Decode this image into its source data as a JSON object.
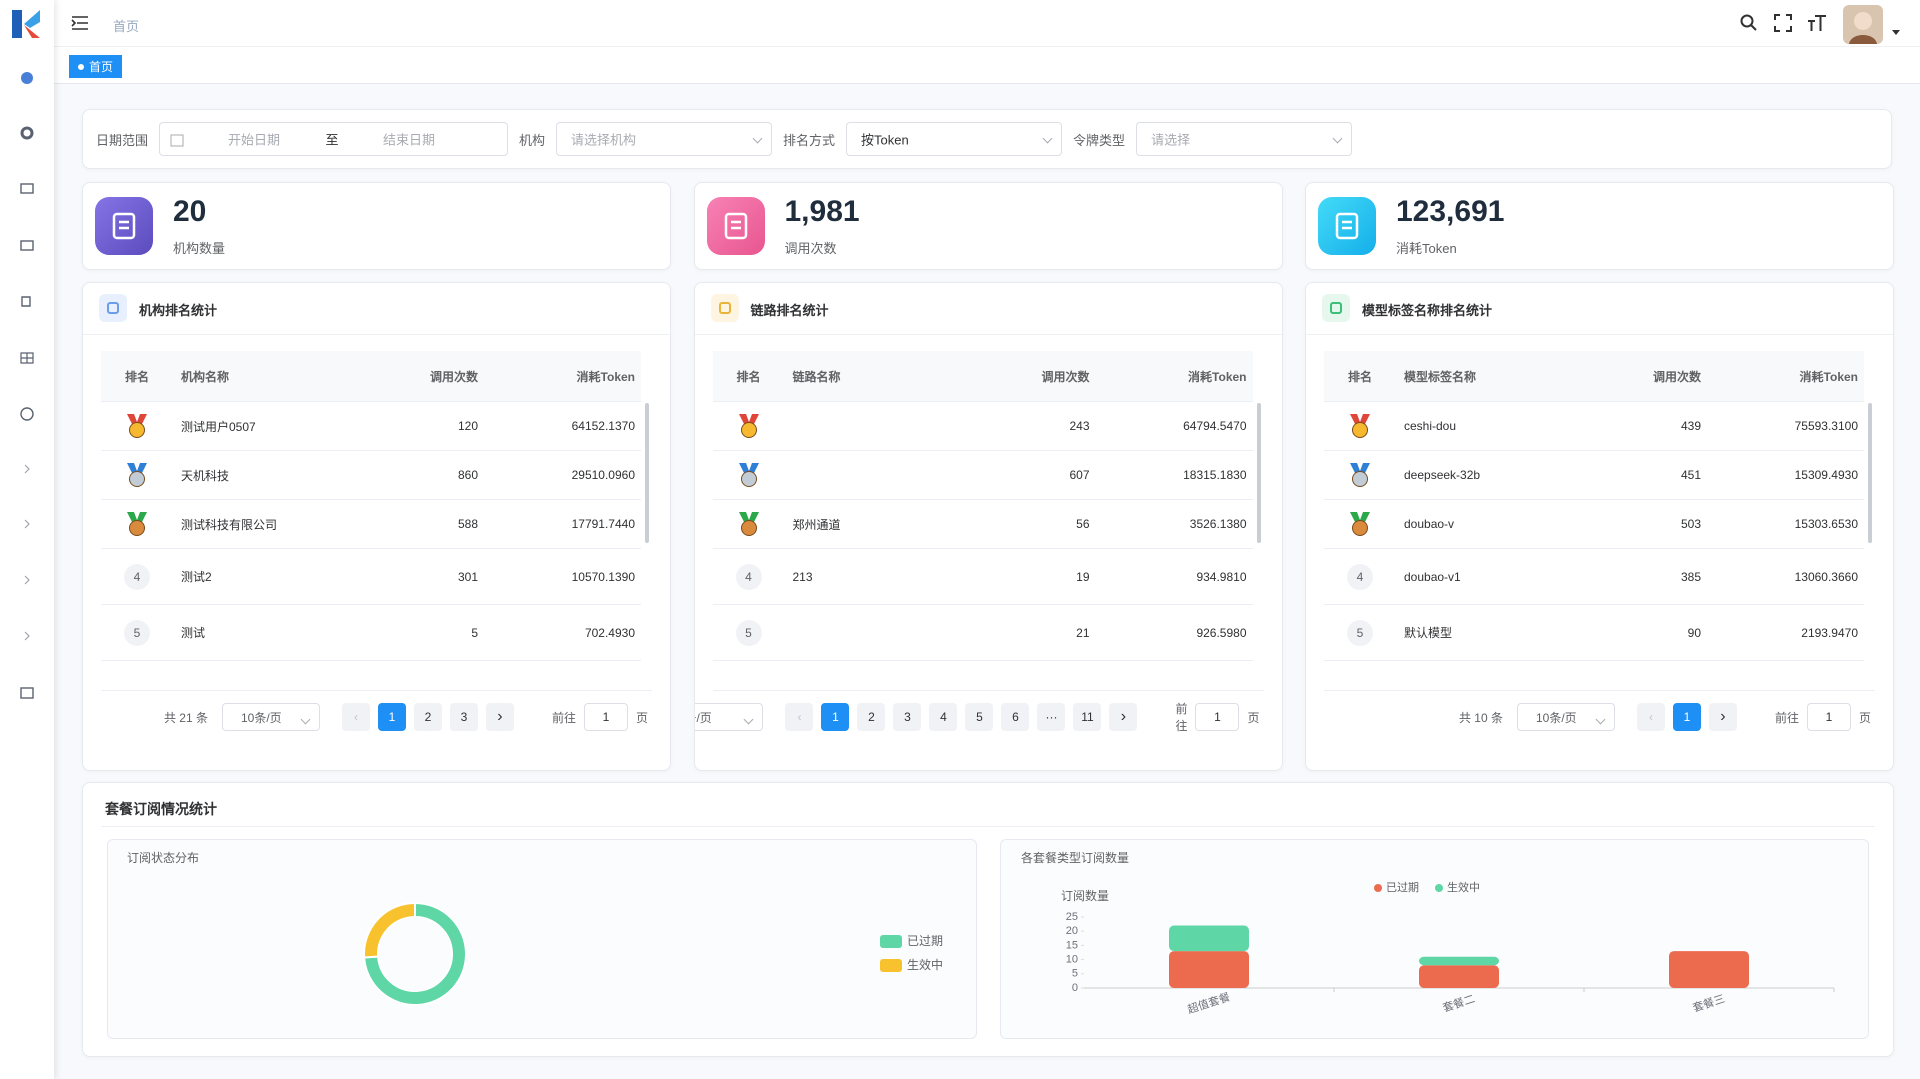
{
  "header": {
    "breadcrumb": "首页",
    "active_tag": "首页"
  },
  "filters": {
    "date_label": "日期范围",
    "start_placeholder": "开始日期",
    "separator": "至",
    "end_placeholder": "结束日期",
    "org_label": "机构",
    "org_placeholder": "请选择机构",
    "sort_label": "排名方式",
    "sort_value": "按Token",
    "token_type_label": "令牌类型",
    "token_type_placeholder": "请选择"
  },
  "stats": [
    {
      "value": "20",
      "label": "机构数量"
    },
    {
      "value": "1,981",
      "label": "调用次数"
    },
    {
      "value": "123,691",
      "label": "消耗Token"
    }
  ],
  "tables": [
    {
      "title": "机构排名统计",
      "columns": [
        "排名",
        "机构名称",
        "调用次数",
        "消耗Token"
      ],
      "rows": [
        {
          "name": "测试用户0507",
          "calls": 120,
          "tokens": "64152.1370"
        },
        {
          "name": "天机科技",
          "calls": 860,
          "tokens": "29510.0960"
        },
        {
          "name": "测试科技有限公司",
          "calls": 588,
          "tokens": "17791.7440"
        },
        {
          "rank": 4,
          "name": "测试2",
          "calls": 301,
          "tokens": "10570.1390"
        },
        {
          "rank": 5,
          "name": "测试",
          "calls": 5,
          "tokens": "702.4930"
        }
      ],
      "pagination": {
        "total": "共 21 条",
        "page_size": "10条/页",
        "pages": [
          "1",
          "2",
          "3"
        ],
        "goto_label": "前往",
        "goto_value": "1",
        "goto_unit": "页"
      }
    },
    {
      "title": "链路排名统计",
      "columns": [
        "排名",
        "链路名称",
        "调用次数",
        "消耗Token"
      ],
      "rows": [
        {
          "name": null,
          "calls": 243,
          "tokens": "64794.5470"
        },
        {
          "name": null,
          "calls": 607,
          "tokens": "18315.1830"
        },
        {
          "name": "郑州通道",
          "calls": 56,
          "tokens": "3526.1380"
        },
        {
          "rank": 4,
          "name": "213",
          "calls": 19,
          "tokens": "934.9810"
        },
        {
          "rank": 5,
          "name": null,
          "calls": 21,
          "tokens": "926.5980"
        }
      ],
      "pagination": {
        "page_size": "条/页",
        "pages": [
          "1",
          "2",
          "3",
          "4",
          "5",
          "6",
          "···",
          "11"
        ],
        "goto_label": "前往",
        "goto_value": "1",
        "goto_unit": "页"
      }
    },
    {
      "title": "模型标签名称排名统计",
      "columns": [
        "排名",
        "模型标签名称",
        "调用次数",
        "消耗Token"
      ],
      "rows": [
        {
          "name": "ceshi-dou",
          "calls": 439,
          "tokens": "75593.3100"
        },
        {
          "name": "deepseek-32b",
          "calls": 451,
          "tokens": "15309.4930"
        },
        {
          "name": "doubao-v",
          "calls": 503,
          "tokens": "15303.6530"
        },
        {
          "rank": 4,
          "name": "doubao-v1",
          "calls": 385,
          "tokens": "13060.3660"
        },
        {
          "rank": 5,
          "name": "默认模型",
          "calls": 90,
          "tokens": "2193.9470"
        }
      ],
      "pagination": {
        "total": "共 10 条",
        "page_size": "10条/页",
        "pages": [
          "1"
        ],
        "goto_label": "前往",
        "goto_value": "1",
        "goto_unit": "页"
      }
    }
  ],
  "subscription": {
    "title": "套餐订阅情况统计",
    "status_chart": {
      "type": "pie",
      "title": "订阅状态分布",
      "categories": [
        "已过期",
        "生效中"
      ],
      "values": [
        34,
        12
      ],
      "colors": [
        "#5ed6a5",
        "#f7c22d"
      ]
    },
    "plan_chart": {
      "type": "bar",
      "title": "各套餐类型订阅数量",
      "ylabel": "订阅数量",
      "categories": [
        "超值套餐",
        "套餐二",
        "套餐三"
      ],
      "series": [
        {
          "name": "已过期",
          "color": "#ec6b4f",
          "values": [
            13,
            8,
            13
          ]
        },
        {
          "name": "生效中",
          "color": "#5ed6a5",
          "values": [
            9,
            3,
            0
          ]
        }
      ],
      "ylim": [
        0,
        25
      ],
      "yticks": [
        0,
        5,
        10,
        15,
        20,
        25
      ],
      "stacked": true
    }
  }
}
